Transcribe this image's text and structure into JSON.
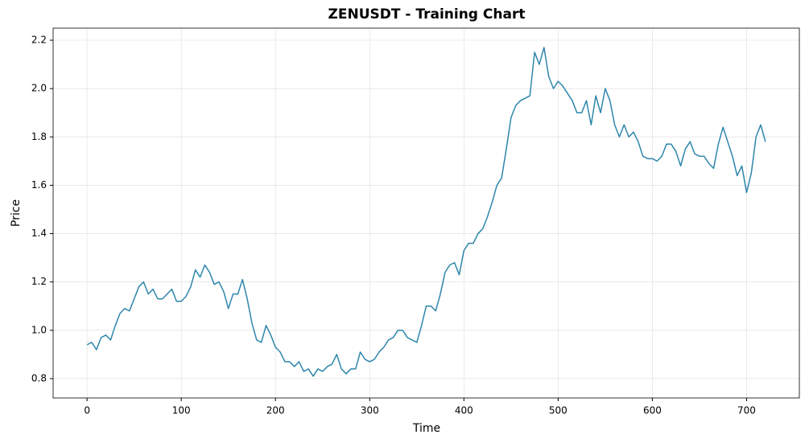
{
  "chart_data": {
    "type": "line",
    "title": "ZENUSDT - Training Chart",
    "x_label": "Time",
    "y_label": "Price",
    "x": [
      0,
      5,
      10,
      15,
      20,
      25,
      30,
      35,
      40,
      45,
      50,
      55,
      60,
      65,
      70,
      75,
      80,
      85,
      90,
      95,
      100,
      105,
      110,
      115,
      120,
      125,
      130,
      135,
      140,
      145,
      150,
      155,
      160,
      165,
      170,
      175,
      180,
      185,
      190,
      195,
      200,
      205,
      210,
      215,
      220,
      225,
      230,
      235,
      240,
      245,
      250,
      255,
      260,
      265,
      270,
      275,
      280,
      285,
      290,
      295,
      300,
      305,
      310,
      315,
      320,
      325,
      330,
      335,
      340,
      345,
      350,
      355,
      360,
      365,
      370,
      375,
      380,
      385,
      390,
      395,
      400,
      405,
      410,
      415,
      420,
      425,
      430,
      435,
      440,
      445,
      450,
      455,
      460,
      465,
      470,
      475,
      480,
      485,
      490,
      495,
      500,
      505,
      510,
      515,
      520,
      525,
      530,
      535,
      540,
      545,
      550,
      555,
      560,
      565,
      570,
      575,
      580,
      585,
      590,
      595,
      600,
      605,
      610,
      615,
      620,
      625,
      630,
      635,
      640,
      645,
      650,
      655,
      660,
      665,
      670,
      675,
      680,
      685,
      690,
      695,
      700,
      705,
      710,
      715,
      720
    ],
    "series": [
      {
        "name": "Price",
        "color": "#2e86ab",
        "values": [
          0.94,
          0.95,
          0.92,
          0.97,
          0.98,
          0.96,
          1.02,
          1.07,
          1.09,
          1.08,
          1.13,
          1.18,
          1.2,
          1.15,
          1.17,
          1.13,
          1.13,
          1.15,
          1.17,
          1.12,
          1.12,
          1.14,
          1.18,
          1.25,
          1.22,
          1.27,
          1.24,
          1.19,
          1.2,
          1.16,
          1.09,
          1.15,
          1.15,
          1.21,
          1.13,
          1.03,
          0.96,
          0.95,
          1.02,
          0.98,
          0.93,
          0.91,
          0.87,
          0.87,
          0.85,
          0.87,
          0.83,
          0.84,
          0.81,
          0.84,
          0.83,
          0.85,
          0.86,
          0.9,
          0.84,
          0.82,
          0.84,
          0.84,
          0.91,
          0.88,
          0.87,
          0.88,
          0.91,
          0.93,
          0.96,
          0.97,
          1.0,
          1.0,
          0.97,
          0.96,
          0.95,
          1.02,
          1.1,
          1.1,
          1.08,
          1.15,
          1.24,
          1.27,
          1.28,
          1.23,
          1.33,
          1.36,
          1.36,
          1.4,
          1.42,
          1.47,
          1.53,
          1.6,
          1.63,
          1.75,
          1.88,
          1.93,
          1.95,
          1.96,
          1.97,
          2.15,
          2.1,
          2.17,
          2.05,
          2.0,
          2.03,
          2.01,
          1.98,
          1.95,
          1.9,
          1.9,
          1.95,
          1.85,
          1.97,
          1.9,
          2.0,
          1.95,
          1.85,
          1.8,
          1.85,
          1.8,
          1.82,
          1.78,
          1.72,
          1.71,
          1.71,
          1.7,
          1.72,
          1.77,
          1.77,
          1.74,
          1.68,
          1.75,
          1.78,
          1.73,
          1.72,
          1.72,
          1.69,
          1.67,
          1.77,
          1.84,
          1.78,
          1.72,
          1.64,
          1.68,
          1.57,
          1.65,
          1.8,
          1.85,
          1.78
        ]
      }
    ],
    "xlim": [
      -36,
      756
    ],
    "ylim": [
      0.72,
      2.25
    ],
    "xticks": [
      0,
      100,
      200,
      300,
      400,
      500,
      600,
      700
    ],
    "yticks": [
      0.8,
      {
        "value": 1.0,
        "label": "1.0"
      },
      1.2,
      1.4,
      1.6,
      1.8,
      {
        "value": 2.0,
        "label": "2.0"
      },
      2.2
    ],
    "grid": true
  }
}
